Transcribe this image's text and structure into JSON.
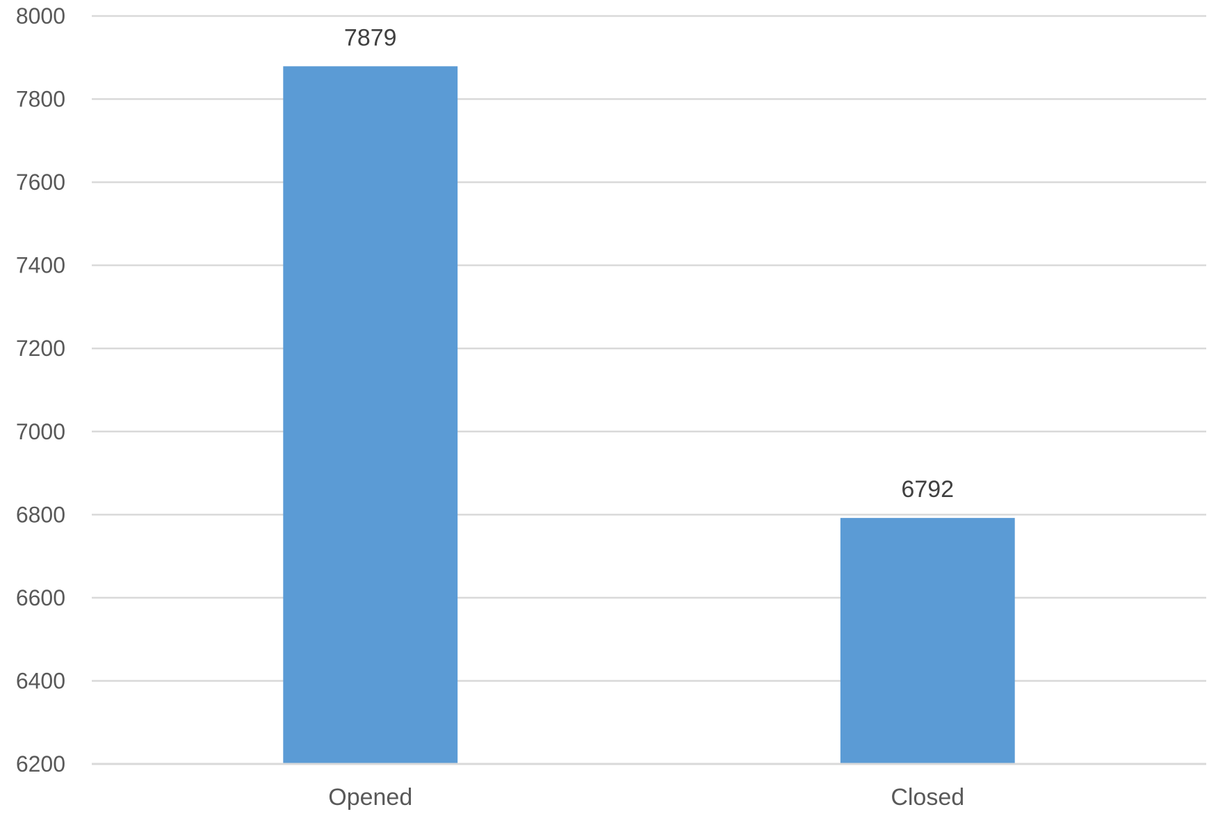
{
  "chart_data": {
    "type": "bar",
    "categories": [
      "Opened",
      "Closed"
    ],
    "values": [
      7879,
      6792
    ],
    "data_labels": [
      "7879",
      "6792"
    ],
    "title": "",
    "xlabel": "",
    "ylabel": "",
    "ylim": [
      6200,
      8000
    ],
    "yticks": [
      6200,
      6400,
      6600,
      6800,
      7000,
      7200,
      7400,
      7600,
      7800,
      8000
    ],
    "grid": true,
    "legend": "none",
    "bar_color": "#5b9bd5",
    "grid_color": "#d9d9d9"
  }
}
